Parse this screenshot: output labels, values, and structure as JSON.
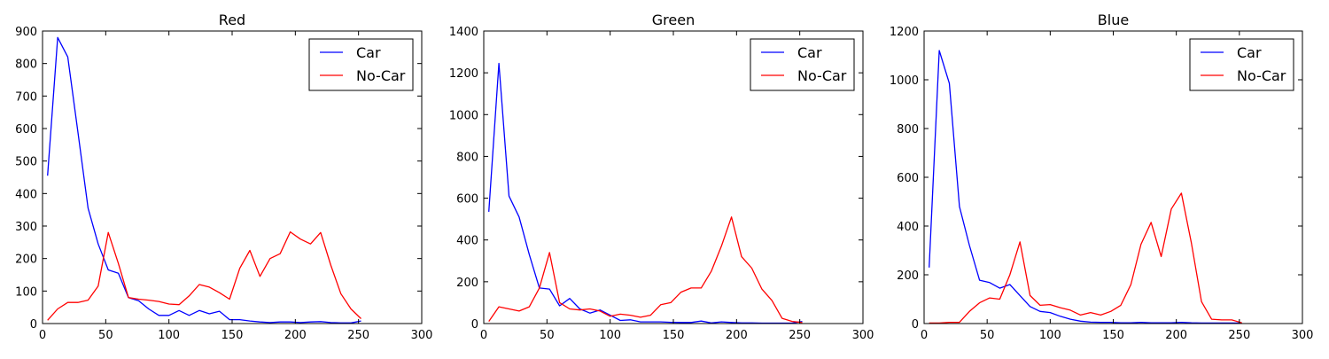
{
  "chart_data": [
    {
      "type": "line",
      "title": "Red",
      "xlabel": "",
      "ylabel": "",
      "xlim": [
        0,
        300
      ],
      "ylim": [
        0,
        900
      ],
      "xticks": [
        0,
        50,
        100,
        150,
        200,
        250,
        300
      ],
      "yticks": [
        0,
        100,
        200,
        300,
        400,
        500,
        600,
        700,
        800,
        900
      ],
      "grid": false,
      "legend_position": "top-right",
      "x": [
        4,
        12,
        20,
        28,
        36,
        44,
        52,
        60,
        68,
        76,
        84,
        92,
        100,
        108,
        116,
        124,
        132,
        140,
        148,
        156,
        164,
        172,
        180,
        188,
        196,
        204,
        212,
        220,
        228,
        236,
        244,
        252
      ],
      "series": [
        {
          "name": "Car",
          "color": "#0000ff",
          "values": [
            455,
            880,
            820,
            590,
            355,
            245,
            165,
            155,
            80,
            70,
            45,
            25,
            25,
            40,
            25,
            40,
            30,
            38,
            12,
            12,
            8,
            5,
            3,
            5,
            5,
            3,
            5,
            6,
            3,
            2,
            2,
            8
          ]
        },
        {
          "name": "No-Car",
          "color": "#ff0000",
          "values": [
            10,
            45,
            65,
            65,
            72,
            115,
            280,
            185,
            80,
            75,
            72,
            68,
            60,
            58,
            85,
            120,
            112,
            95,
            75,
            170,
            225,
            145,
            200,
            215,
            282,
            260,
            245,
            280,
            180,
            92,
            45,
            15
          ]
        }
      ]
    },
    {
      "type": "line",
      "title": "Green",
      "xlabel": "",
      "ylabel": "",
      "xlim": [
        0,
        300
      ],
      "ylim": [
        0,
        1400
      ],
      "xticks": [
        0,
        50,
        100,
        150,
        200,
        250,
        300
      ],
      "yticks": [
        0,
        200,
        400,
        600,
        800,
        1000,
        1200,
        1400
      ],
      "grid": false,
      "legend_position": "top-right",
      "x": [
        4,
        12,
        20,
        28,
        36,
        44,
        52,
        60,
        68,
        76,
        84,
        92,
        100,
        108,
        116,
        124,
        132,
        140,
        148,
        156,
        164,
        172,
        180,
        188,
        196,
        204,
        212,
        220,
        228,
        236,
        244,
        252
      ],
      "series": [
        {
          "name": "Car",
          "color": "#0000ff",
          "values": [
            535,
            1245,
            610,
            510,
            330,
            170,
            165,
            85,
            120,
            70,
            50,
            65,
            40,
            15,
            18,
            8,
            8,
            8,
            6,
            5,
            5,
            12,
            3,
            8,
            5,
            3,
            3,
            2,
            2,
            2,
            2,
            10
          ]
        },
        {
          "name": "No-Car",
          "color": "#ff0000",
          "values": [
            10,
            80,
            70,
            60,
            80,
            170,
            340,
            100,
            70,
            65,
            70,
            60,
            35,
            45,
            40,
            30,
            40,
            90,
            100,
            150,
            170,
            170,
            250,
            370,
            510,
            320,
            265,
            165,
            110,
            25,
            10,
            5
          ]
        }
      ]
    },
    {
      "type": "line",
      "title": "Blue",
      "xlabel": "",
      "ylabel": "",
      "xlim": [
        0,
        300
      ],
      "ylim": [
        0,
        1200
      ],
      "xticks": [
        0,
        50,
        100,
        150,
        200,
        250,
        300
      ],
      "yticks": [
        0,
        200,
        400,
        600,
        800,
        1000,
        1200
      ],
      "grid": false,
      "legend_position": "top-right",
      "x": [
        4,
        12,
        20,
        28,
        36,
        44,
        52,
        60,
        68,
        76,
        84,
        92,
        100,
        108,
        116,
        124,
        132,
        140,
        148,
        156,
        164,
        172,
        180,
        188,
        196,
        204,
        212,
        220,
        228,
        236,
        244,
        252
      ],
      "series": [
        {
          "name": "Car",
          "color": "#0000ff",
          "values": [
            230,
            1120,
            985,
            480,
            320,
            178,
            168,
            145,
            160,
            115,
            70,
            50,
            45,
            30,
            18,
            10,
            6,
            5,
            5,
            3,
            3,
            5,
            3,
            3,
            3,
            5,
            3,
            2,
            2,
            2,
            2,
            2
          ]
        },
        {
          "name": "No-Car",
          "color": "#ff0000",
          "values": [
            2,
            2,
            5,
            5,
            50,
            85,
            105,
            100,
            200,
            335,
            115,
            75,
            78,
            65,
            55,
            35,
            45,
            35,
            50,
            75,
            160,
            325,
            415,
            275,
            470,
            535,
            330,
            90,
            18,
            15,
            15,
            3
          ]
        }
      ]
    }
  ]
}
